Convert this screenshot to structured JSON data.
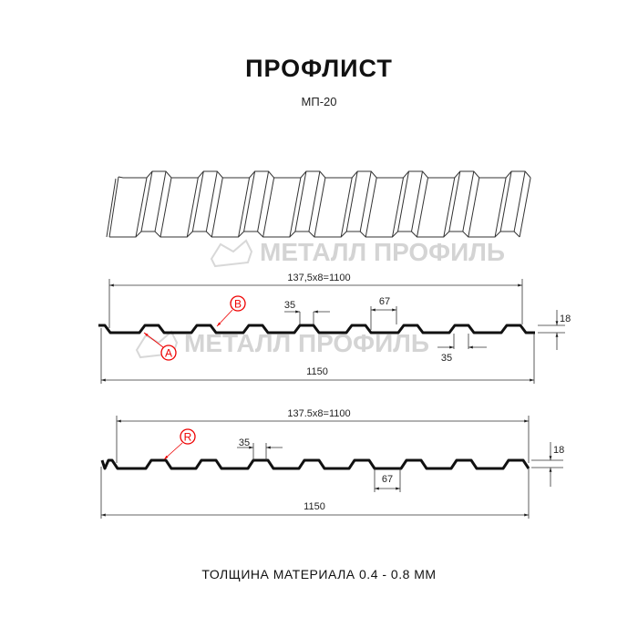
{
  "header": {
    "title": "ПРОФЛИСТ",
    "subtitle": "МП-20"
  },
  "watermark": {
    "text": "МЕТАЛЛ ПРОФИЛЬ"
  },
  "profile_1": {
    "pitch_label": "137,5x8=1100",
    "width_label": "1150",
    "top_width_label": "35",
    "bottom_width_label": "35",
    "rib_base_label": "67",
    "height_label": "18",
    "marker_a": "A",
    "marker_b": "B"
  },
  "profile_2": {
    "pitch_label": "137.5x8=1100",
    "width_label": "1150",
    "top_width_label": "35",
    "rib_base_label": "67",
    "height_label": "18",
    "marker_r": "R"
  },
  "footer": {
    "text": "ТОЛЩИНА МАТЕРИАЛА 0.4 - 0.8 ММ"
  },
  "colors": {
    "marker": "#e00000",
    "profile": "#111111",
    "watermark": "#d4d4d4"
  }
}
